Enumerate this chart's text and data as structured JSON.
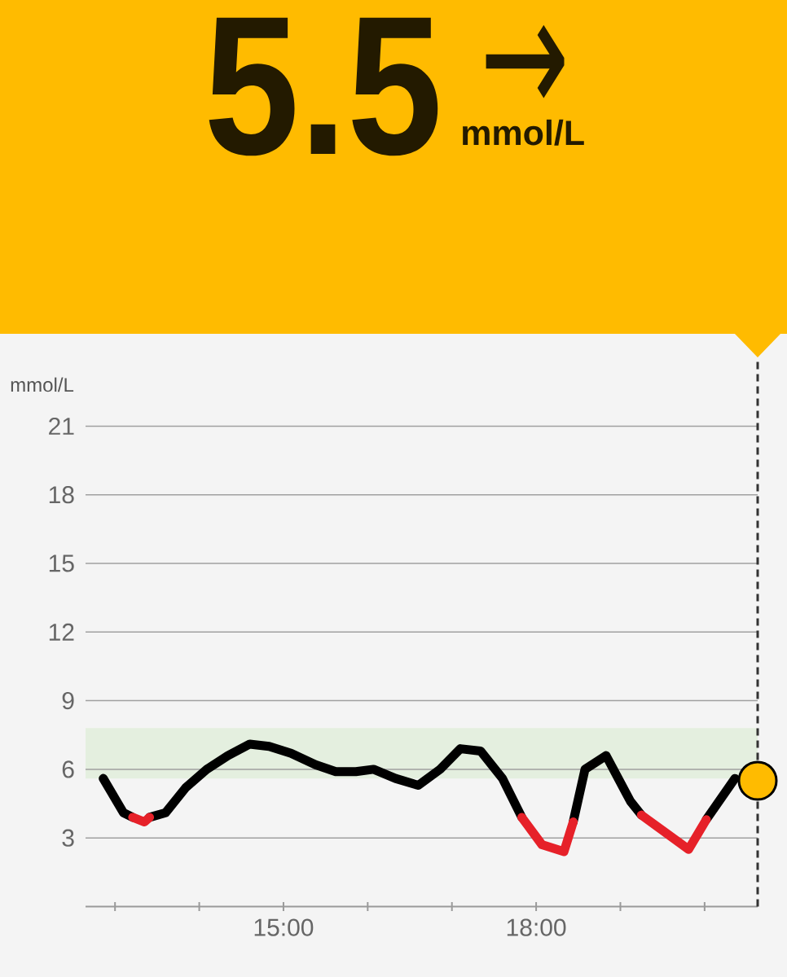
{
  "chart_data": {
    "type": "line",
    "title": "5.5",
    "subtitle": "mmol/L",
    "ylabel": "mmol/L",
    "annotations": [
      "→"
    ],
    "x": [
      12.86,
      13.1,
      13.21,
      13.35,
      13.41,
      13.6,
      13.84,
      14.09,
      14.34,
      14.6,
      14.83,
      15.09,
      15.38,
      15.62,
      15.86,
      16.07,
      16.33,
      16.6,
      16.86,
      17.1,
      17.34,
      17.6,
      17.83,
      18.07,
      18.33,
      18.44,
      18.58,
      18.83,
      19.12,
      19.25,
      19.81,
      20.02,
      20.36
    ],
    "series": [
      {
        "color": "#000000",
        "values": [
          5.6,
          4.1,
          3.9,
          null,
          3.9,
          4.1,
          5.2,
          6.0,
          6.6,
          7.1,
          7.0,
          6.7,
          6.2,
          5.9,
          5.9,
          6.0,
          5.6,
          5.3,
          6.0,
          6.9,
          6.8,
          5.6,
          3.9,
          null,
          null,
          3.7,
          6.0,
          6.6,
          4.6,
          4.0,
          null,
          3.8,
          5.6
        ]
      },
      {
        "color": "#e62129",
        "values": [
          null,
          null,
          3.9,
          3.7,
          3.9,
          null,
          null,
          null,
          null,
          null,
          null,
          null,
          null,
          null,
          null,
          null,
          null,
          null,
          null,
          null,
          null,
          null,
          3.9,
          2.7,
          2.4,
          3.7,
          null,
          null,
          null,
          4.0,
          2.5,
          3.8,
          null
        ]
      },
      {
        "type": "scatter",
        "color": "#ffbb00",
        "marker": "circle",
        "x": [
          20.63
        ],
        "values": [
          5.5
        ]
      }
    ],
    "xlim": [
      12.65,
      20.63
    ],
    "xticks": [
      {
        "value": 13,
        "label": null
      },
      {
        "value": 14,
        "label": null
      },
      {
        "value": 15,
        "label": "15:00"
      },
      {
        "value": 16,
        "label": null
      },
      {
        "value": 17,
        "label": null
      },
      {
        "value": 18,
        "label": "18:00"
      },
      {
        "value": 19,
        "label": null
      },
      {
        "value": 20,
        "label": null
      }
    ],
    "ylim": [
      0,
      24
    ],
    "yticks": [
      3,
      6,
      9,
      12,
      15,
      18,
      21
    ],
    "grid": "y",
    "line_style": "solid",
    "bands": [
      {
        "axis": "y",
        "from": 5.6,
        "to": 7.8,
        "color": "#e4efdf"
      }
    ],
    "ref_lines": [
      {
        "axis": "x",
        "value": 20.63,
        "color": "#333333",
        "line_style": "dashed"
      }
    ]
  }
}
